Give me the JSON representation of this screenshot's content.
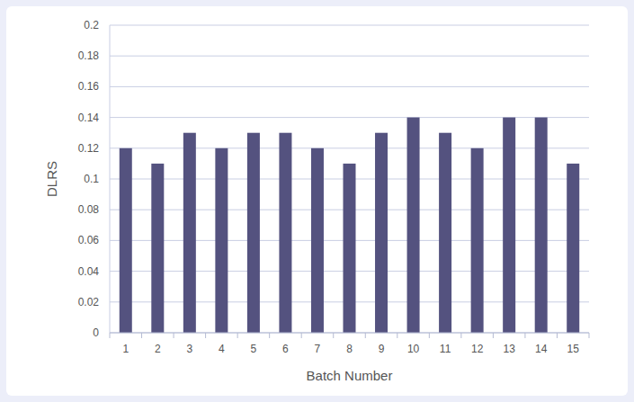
{
  "chart_data": {
    "type": "bar",
    "x_label": "Batch Number",
    "y_label": "DLRS",
    "categories": [
      "1",
      "2",
      "3",
      "4",
      "5",
      "6",
      "7",
      "8",
      "9",
      "10",
      "11",
      "12",
      "13",
      "14",
      "15"
    ],
    "values": [
      0.12,
      0.11,
      0.13,
      0.12,
      0.13,
      0.13,
      0.12,
      0.11,
      0.13,
      0.14,
      0.13,
      0.12,
      0.14,
      0.14,
      0.11
    ],
    "color": "#54527f",
    "ylim": [
      0,
      0.2
    ],
    "yticks": [
      0,
      0.02,
      0.04,
      0.06,
      0.08,
      0.1,
      0.12,
      0.14,
      0.16,
      0.18,
      0.2
    ],
    "grid": true
  }
}
